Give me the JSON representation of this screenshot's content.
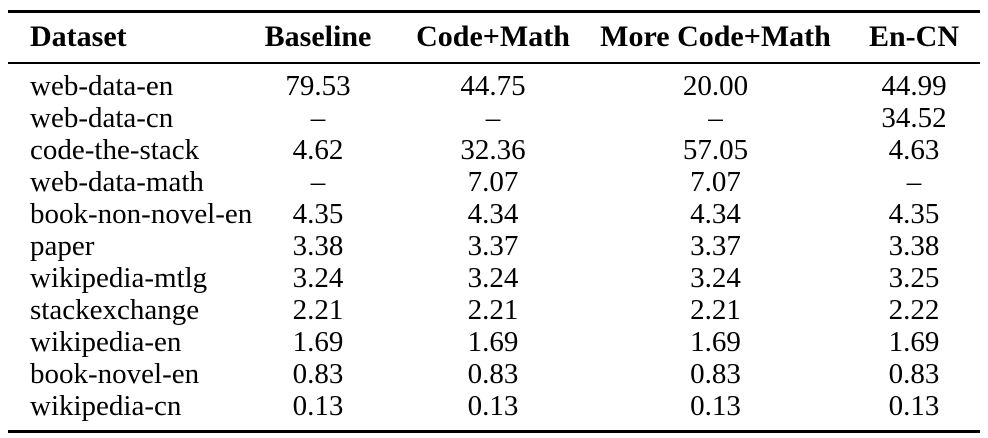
{
  "page": {
    "background_color": "#ffffff",
    "text_color": "#000000",
    "rule_color": "#000000"
  },
  "table": {
    "columns": [
      {
        "label": "Dataset",
        "align": "left"
      },
      {
        "label": "Baseline",
        "align": "center"
      },
      {
        "label": "Code+Math",
        "align": "center"
      },
      {
        "label": "More Code+Math",
        "align": "center"
      },
      {
        "label": "En-CN",
        "align": "center"
      }
    ],
    "rows": [
      {
        "dataset": "web-data-en",
        "values": [
          "79.53",
          "44.75",
          "20.00",
          "44.99"
        ]
      },
      {
        "dataset": "web-data-cn",
        "values": [
          "–",
          "–",
          "–",
          "34.52"
        ]
      },
      {
        "dataset": "code-the-stack",
        "values": [
          "4.62",
          "32.36",
          "57.05",
          "4.63"
        ]
      },
      {
        "dataset": "web-data-math",
        "values": [
          "–",
          "7.07",
          "7.07",
          "–"
        ]
      },
      {
        "dataset": "book-non-novel-en",
        "values": [
          "4.35",
          "4.34",
          "4.34",
          "4.35"
        ]
      },
      {
        "dataset": "paper",
        "values": [
          "3.38",
          "3.37",
          "3.37",
          "3.38"
        ]
      },
      {
        "dataset": "wikipedia-mtlg",
        "values": [
          "3.24",
          "3.24",
          "3.24",
          "3.25"
        ]
      },
      {
        "dataset": "stackexchange",
        "values": [
          "2.21",
          "2.21",
          "2.21",
          "2.22"
        ]
      },
      {
        "dataset": "wikipedia-en",
        "values": [
          "1.69",
          "1.69",
          "1.69",
          "1.69"
        ]
      },
      {
        "dataset": "book-novel-en",
        "values": [
          "0.83",
          "0.83",
          "0.83",
          "0.83"
        ]
      },
      {
        "dataset": "wikipedia-cn",
        "values": [
          "0.13",
          "0.13",
          "0.13",
          "0.13"
        ]
      }
    ]
  }
}
